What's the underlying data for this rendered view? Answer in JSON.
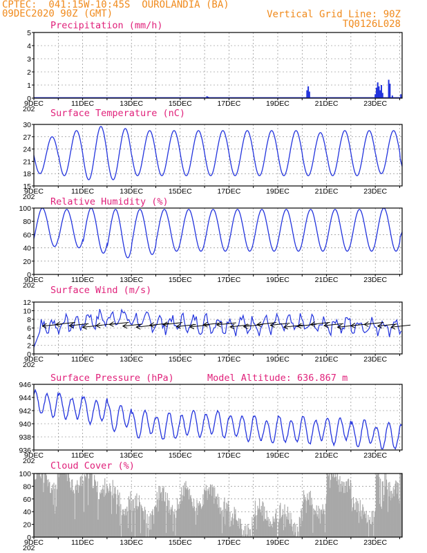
{
  "header": {
    "line1_left": "CPTEC:  041:15W-10:45S  OUROLANDIA (BA)",
    "line2_left": "09DEC2020 90Z (GMT)",
    "line1_right": "Vertical Grid Line: 90Z",
    "line2_right": "TQ0126L028"
  },
  "colors": {
    "header": "#f08a1c",
    "panel_title": "#e0207a",
    "line": "#2233dd",
    "bar": "#2233dd",
    "cloud_fill": "#a8a8a8",
    "wind_barb": "#000000"
  },
  "x_axis": {
    "start_label": "9DEC",
    "labels": [
      "9DEC",
      "11DEC",
      "13DEC",
      "15DEC",
      "17DEC",
      "19DEC",
      "21DEC",
      "23DEC"
    ],
    "label_days": [
      9,
      11,
      13,
      15,
      17,
      19,
      21,
      23
    ],
    "range_days": [
      9,
      24.1
    ],
    "year_stub": "202"
  },
  "chart_data": [
    {
      "type": "bar",
      "title": "Precipitation (mm/h)",
      "ylim": [
        0,
        5
      ],
      "yticks": [
        "0",
        "1",
        "2",
        "3",
        "4",
        "5"
      ],
      "ytick_values": [
        0,
        1,
        2,
        3,
        4,
        5
      ],
      "grid": true,
      "series": [
        {
          "name": "",
          "values": [
            [
              16.1,
              0.15
            ],
            [
              16.15,
              0.1
            ],
            [
              20.2,
              0.6
            ],
            [
              20.25,
              0.9
            ],
            [
              20.3,
              0.5
            ],
            [
              23.0,
              0.3
            ],
            [
              23.05,
              0.8
            ],
            [
              23.1,
              1.2
            ],
            [
              23.15,
              0.9
            ],
            [
              23.2,
              0.6
            ],
            [
              23.25,
              1.0
            ],
            [
              23.3,
              0.4
            ],
            [
              23.55,
              1.4
            ],
            [
              23.6,
              1.1
            ],
            [
              23.7,
              0.2
            ],
            [
              24.05,
              0.3
            ]
          ]
        }
      ]
    },
    {
      "type": "line",
      "title": "Surface Temperature (nC)",
      "ylim": [
        15,
        30
      ],
      "yticks": [
        "15",
        "18",
        "21",
        "24",
        "27",
        "30"
      ],
      "ytick_values": [
        15,
        18,
        21,
        24,
        27,
        30
      ],
      "grid": true,
      "daily_min": [
        18,
        17.5,
        16.5,
        16.5,
        17.5,
        17.5,
        17.5,
        17.5,
        17.5,
        17.5,
        17.5,
        17.5,
        17.5,
        17.5,
        18,
        18
      ],
      "daily_max": [
        27,
        28.5,
        29.5,
        29,
        28.5,
        28.5,
        28.5,
        28.5,
        28.5,
        28.5,
        28.5,
        28,
        28.5,
        28.5,
        28.5,
        26.5
      ]
    },
    {
      "type": "line",
      "title": "Relative Humidity (%)",
      "ylim": [
        0,
        100
      ],
      "yticks": [
        "0",
        "20",
        "40",
        "60",
        "80",
        "100"
      ],
      "ytick_values": [
        0,
        20,
        40,
        60,
        80,
        100
      ],
      "grid": true,
      "daily_min": [
        42,
        40,
        32,
        25,
        30,
        35,
        35,
        35,
        35,
        35,
        35,
        35,
        35,
        35,
        35,
        48
      ],
      "daily_max": [
        100,
        98,
        100,
        98,
        98,
        98,
        98,
        98,
        98,
        98,
        98,
        98,
        98,
        98,
        100,
        80
      ]
    },
    {
      "type": "line",
      "title": "Surface Wind (m/s)",
      "ylim": [
        0,
        12
      ],
      "yticks": [
        "0",
        "2",
        "4",
        "6",
        "8",
        "10",
        "12"
      ],
      "ytick_values": [
        0,
        2,
        4,
        6,
        8,
        10,
        12
      ],
      "grid": true,
      "mean_speed": [
        6.5,
        7,
        8,
        8.5,
        7.5,
        7,
        7,
        7,
        6.8,
        6.8,
        6.8,
        6.8,
        6.8,
        6.5,
        6.5,
        6.5
      ],
      "barbs_y": 6.5
    },
    {
      "type": "line",
      "title": "Surface Pressure (hPa)",
      "annotation": "Model Altitude: 636.867 m",
      "ylim": [
        936,
        946
      ],
      "yticks": [
        "936",
        "938",
        "940",
        "942",
        "944",
        "946"
      ],
      "ytick_values": [
        936,
        938,
        940,
        942,
        944,
        946
      ],
      "grid": true,
      "daily_mean": [
        943,
        942.5,
        942,
        941,
        940,
        939.5,
        940,
        940,
        939.5,
        939,
        939,
        939,
        939,
        938.5,
        938,
        938.5
      ]
    },
    {
      "type": "area",
      "title": "Cloud Cover (%)",
      "ylim": [
        0,
        100
      ],
      "yticks": [
        "0",
        "20",
        "40",
        "60",
        "80",
        "100"
      ],
      "ytick_values": [
        0,
        20,
        40,
        60,
        80,
        100
      ],
      "grid": true,
      "daily_level": [
        92,
        92,
        85,
        60,
        40,
        55,
        60,
        60,
        20,
        35,
        30,
        50,
        90,
        40,
        85,
        95
      ]
    }
  ]
}
